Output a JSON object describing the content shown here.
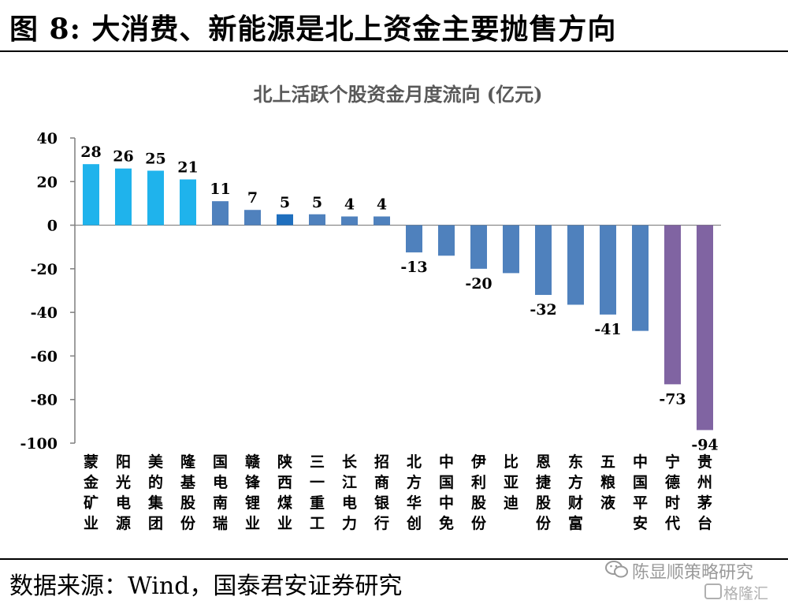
{
  "figure": {
    "title": "图 8:  大消费、新能源是北上资金主要抛售方向",
    "source": "数据来源：Wind，国泰君安证券研究"
  },
  "watermark": {
    "line1": "陈显顺策略研究",
    "line2": "格隆汇",
    "icon": "wechat-icon"
  },
  "chart_data": {
    "type": "bar",
    "title": "北上活跃个股资金月度流向 (亿元)",
    "ylim": [
      -100,
      40
    ],
    "yticks": [
      40,
      20,
      0,
      -20,
      -40,
      -60,
      -80,
      -100
    ],
    "grid": false,
    "categories": [
      "蒙金矿业",
      "阳光电源",
      "美的集团",
      "隆基股份",
      "国电南瑞",
      "赣锋锂业",
      "陕西煤业",
      "三一重工",
      "长江电力",
      "招商银行",
      "北方华创",
      "中国中免",
      "伊利股份",
      "比亚迪",
      "恩捷股份",
      "东方财富",
      "五粮液",
      "中国平安",
      "宁德时代",
      "贵州茅台"
    ],
    "values": [
      28,
      26,
      25,
      21,
      11,
      7,
      5,
      5,
      4,
      4,
      -12.5,
      -14,
      -20,
      -22,
      -32,
      -36.5,
      -41,
      -48.5,
      -73,
      -94
    ],
    "data_labels": [
      "28",
      "26",
      "25",
      "21",
      "11",
      "7",
      "5",
      "5",
      "4",
      "4",
      "-13",
      "",
      "-20",
      "",
      "-32",
      "",
      "-41",
      "",
      "-73",
      "-94"
    ],
    "colors": [
      "#1fb3ec",
      "#1fb3ec",
      "#1fb3ec",
      "#1fb3ec",
      "#4f81bd",
      "#4f81bd",
      "#1f6fbe",
      "#4f81bd",
      "#4f81bd",
      "#4f81bd",
      "#4f81bd",
      "#4f81bd",
      "#4f81bd",
      "#4f81bd",
      "#4f81bd",
      "#4f81bd",
      "#4f81bd",
      "#4f81bd",
      "#8064a2",
      "#8064a2"
    ]
  }
}
